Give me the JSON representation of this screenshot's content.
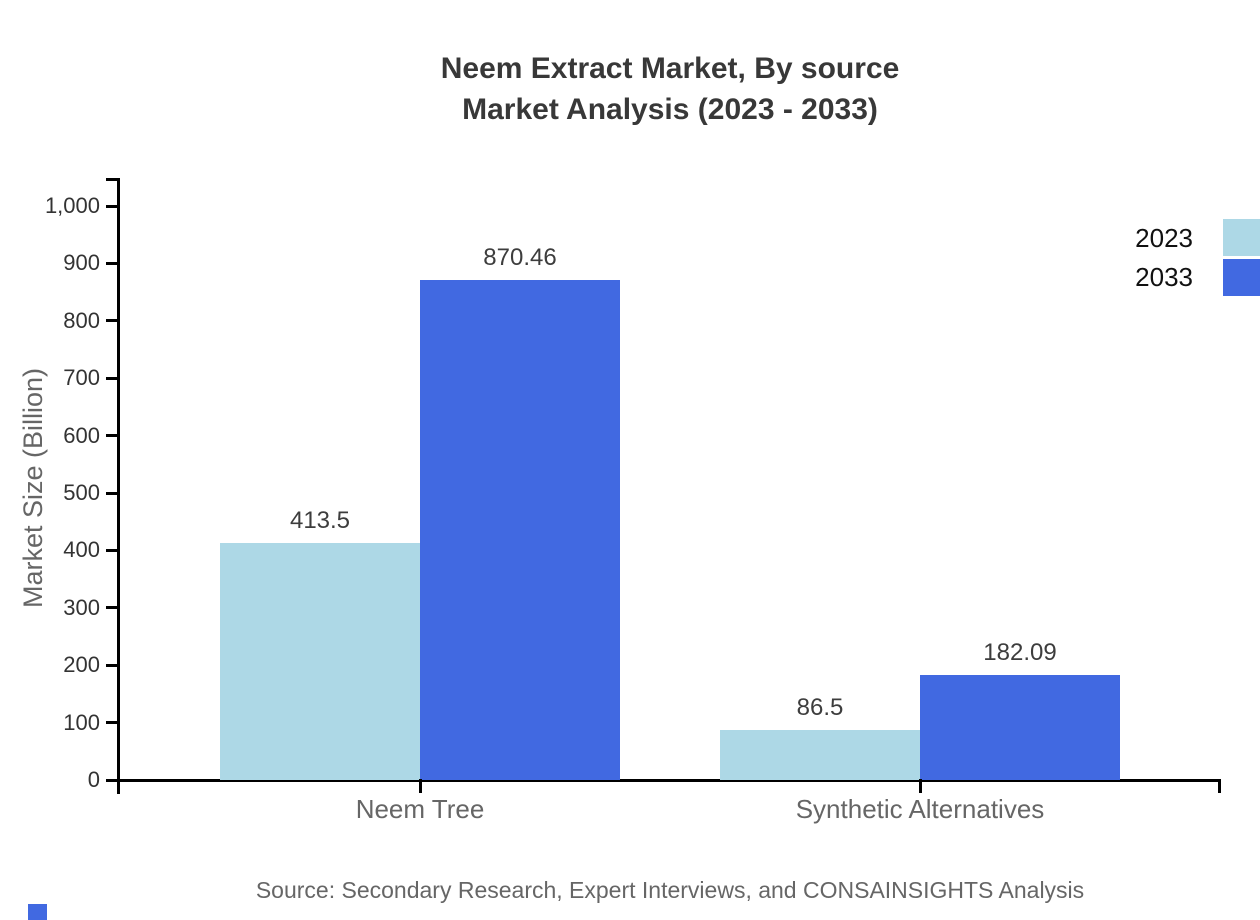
{
  "title": {
    "line1": "Neem Extract Market, By source",
    "line2": "Market Analysis (2023 - 2033)"
  },
  "source_note": "Source: Secondary Research, Expert Interviews, and CONSAINSIGHTS Analysis",
  "colors": {
    "series_2023": "#ADD8E6",
    "series_2033": "#4169E1",
    "axis": "#000000",
    "title_text": "#383838",
    "muted_text": "#666666",
    "tick_text": "#333333",
    "legend_text": "#111111",
    "logo": "#4169E1"
  },
  "chart_data": {
    "type": "bar",
    "title": "Neem Extract Market, By source — Market Analysis (2023 - 2033)",
    "categories": [
      "Neem Tree",
      "Synthetic Alternatives"
    ],
    "series": [
      {
        "name": "2023",
        "color": "#ADD8E6",
        "values": [
          413.5,
          86.5
        ]
      },
      {
        "name": "2033",
        "color": "#4169E1",
        "values": [
          870.46,
          182.09
        ]
      }
    ],
    "data_labels": [
      [
        "413.5",
        "86.5"
      ],
      [
        "870.46",
        "182.09"
      ]
    ],
    "xlabel": "",
    "ylabel": "Market Size (Billion)",
    "ylim": [
      0,
      1000
    ],
    "yticks": [
      0,
      100,
      200,
      300,
      400,
      500,
      600,
      700,
      800,
      900,
      1000
    ],
    "ytick_labels": [
      "0",
      "100",
      "200",
      "300",
      "400",
      "500",
      "600",
      "700",
      "800",
      "900",
      "1,000"
    ],
    "grid": false,
    "legend_position": "top-right-outside"
  }
}
